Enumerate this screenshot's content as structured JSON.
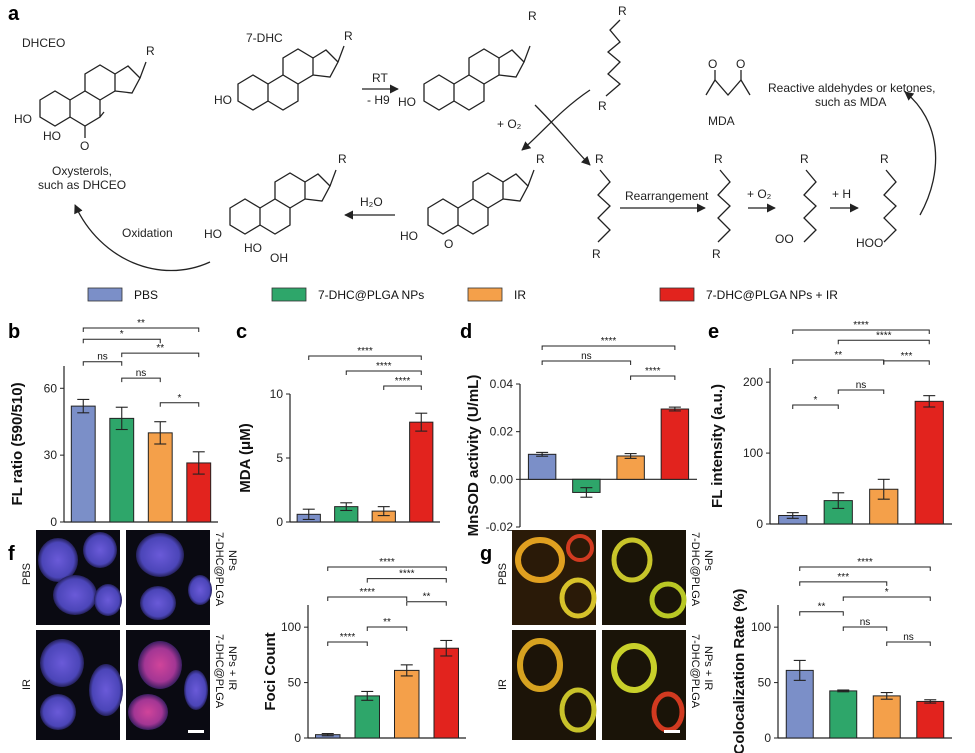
{
  "panels": {
    "a": "a",
    "b": "b",
    "c": "c",
    "d": "d",
    "e": "e",
    "f": "f",
    "g": "g"
  },
  "scheme": {
    "dhceo": "DHCEO",
    "dhc7": "7-DHC",
    "rt": "RT",
    "h9": "- H9",
    "o2_add": "+ O₂",
    "h2o": "H₂O",
    "oxidation": "Oxidation",
    "oxysterols": "Oxysterols,",
    "oxysterols2": "such as DHCEO",
    "rearrangement": "Rearrangement",
    "o2_add2": "+ O₂",
    "h_add": "+ H",
    "mda": "MDA",
    "reactive": "Reactive aldehydes or ketones,",
    "reactive2": "such as MDA",
    "r": "R",
    "h": "H",
    "ho": "HO",
    "oh": "OH",
    "o": "O",
    "ooh": "HOO",
    "oo": "OO"
  },
  "legend": [
    {
      "label": "PBS",
      "color": "#7b8fc8"
    },
    {
      "label": "7-DHC@PLGA NPs",
      "color": "#2ea66a"
    },
    {
      "label": "IR",
      "color": "#f4a04a"
    },
    {
      "label": "7-DHC@PLGA NPs + IR",
      "color": "#e2231e"
    }
  ],
  "chart_data": [
    {
      "panel": "b",
      "type": "bar",
      "ylabel": "FL ratio (590/510)",
      "categories": [
        "PBS",
        "7-DHC@PLGA NPs",
        "IR",
        "7-DHC@PLGA NPs + IR"
      ],
      "values": [
        52,
        46.5,
        40,
        26.5
      ],
      "errors": [
        3,
        5,
        5,
        5
      ],
      "ylim": [
        0,
        70
      ],
      "yticks": [
        "0",
        "30",
        "60"
      ],
      "significance": [
        {
          "from": 0,
          "to": 1,
          "label": "ns"
        },
        {
          "from": 0,
          "to": 2,
          "label": "*"
        },
        {
          "from": 0,
          "to": 3,
          "label": "**"
        },
        {
          "from": 1,
          "to": 2,
          "label": "ns"
        },
        {
          "from": 1,
          "to": 3,
          "label": "**"
        },
        {
          "from": 2,
          "to": 3,
          "label": "*"
        }
      ]
    },
    {
      "panel": "c",
      "type": "bar",
      "ylabel": "MDA (μM)",
      "categories": [
        "PBS",
        "7-DHC@PLGA NPs",
        "IR",
        "7-DHC@PLGA NPs + IR"
      ],
      "values": [
        0.6,
        1.2,
        0.85,
        7.8
      ],
      "errors": [
        0.4,
        0.3,
        0.35,
        0.7
      ],
      "ylim": [
        0,
        10
      ],
      "yticks": [
        "0",
        "5",
        "10"
      ],
      "significance": [
        {
          "from": 0,
          "to": 3,
          "label": "****"
        },
        {
          "from": 1,
          "to": 3,
          "label": "****"
        },
        {
          "from": 2,
          "to": 3,
          "label": "****"
        }
      ]
    },
    {
      "panel": "d",
      "type": "bar",
      "ylabel": "MnSOD activity (U/mL)",
      "categories": [
        "PBS",
        "7-DHC@PLGA NPs",
        "IR",
        "7-DHC@PLGA NPs + IR"
      ],
      "values": [
        0.0105,
        -0.0055,
        0.0098,
        0.0295
      ],
      "errors": [
        0.0008,
        0.002,
        0.001,
        0.0008
      ],
      "ylim": [
        -0.02,
        0.04
      ],
      "yticks": [
        "-0.02",
        "0.00",
        "0.02",
        "0.04"
      ],
      "significance": [
        {
          "from": 0,
          "to": 3,
          "label": "****"
        },
        {
          "from": 2,
          "to": 3,
          "label": "****"
        },
        {
          "from": 0,
          "to": 2,
          "label": "ns"
        }
      ]
    },
    {
      "panel": "e",
      "type": "bar",
      "ylabel": "FL intensity (a.u.)",
      "categories": [
        "PBS",
        "7-DHC@PLGA NPs",
        "IR",
        "7-DHC@PLGA NPs + IR"
      ],
      "values": [
        12,
        33,
        49,
        173
      ],
      "errors": [
        4,
        11,
        14,
        8
      ],
      "ylim": [
        0,
        220
      ],
      "yticks": [
        "0",
        "100",
        "200"
      ],
      "significance": [
        {
          "from": 0,
          "to": 3,
          "label": "****"
        },
        {
          "from": 1,
          "to": 3,
          "label": "****"
        },
        {
          "from": 2,
          "to": 3,
          "label": "***"
        },
        {
          "from": 0,
          "to": 2,
          "label": "**"
        },
        {
          "from": 1,
          "to": 2,
          "label": "ns"
        },
        {
          "from": 0,
          "to": 1,
          "label": "*"
        }
      ]
    },
    {
      "panel": "f",
      "type": "bar",
      "ylabel": "Foci Count",
      "categories": [
        "PBS",
        "7-DHC@PLGA NPs",
        "IR",
        "7-DHC@PLGA NPs + IR"
      ],
      "values": [
        3,
        38,
        61,
        81
      ],
      "errors": [
        1,
        4,
        5,
        7
      ],
      "ylim": [
        0,
        120
      ],
      "yticks": [
        "0",
        "50",
        "100"
      ],
      "significance": [
        {
          "from": 0,
          "to": 3,
          "label": "****"
        },
        {
          "from": 1,
          "to": 3,
          "label": "****"
        },
        {
          "from": 2,
          "to": 3,
          "label": "**"
        },
        {
          "from": 0,
          "to": 2,
          "label": "****"
        },
        {
          "from": 1,
          "to": 2,
          "label": "**"
        },
        {
          "from": 0,
          "to": 1,
          "label": "****"
        }
      ]
    },
    {
      "panel": "g",
      "type": "bar",
      "ylabel": "Colocalization Rate (%)",
      "categories": [
        "PBS",
        "7-DHC@PLGA NPs",
        "IR",
        "7-DHC@PLGA NPs + IR"
      ],
      "values": [
        61,
        42.5,
        38,
        33
      ],
      "errors": [
        9,
        0.8,
        3,
        1.5
      ],
      "ylim": [
        0,
        120
      ],
      "yticks": [
        "0",
        "50",
        "100"
      ],
      "significance": [
        {
          "from": 0,
          "to": 3,
          "label": "****"
        },
        {
          "from": 0,
          "to": 2,
          "label": "***"
        },
        {
          "from": 0,
          "to": 1,
          "label": "**"
        },
        {
          "from": 1,
          "to": 3,
          "label": "*"
        },
        {
          "from": 1,
          "to": 2,
          "label": "ns"
        },
        {
          "from": 2,
          "to": 3,
          "label": "ns"
        }
      ]
    }
  ],
  "micrographs": {
    "f": {
      "row1": "PBS",
      "row2": "IR",
      "side1": "7-DHC@PLGA",
      "side1b": "NPs",
      "side2": "7-DHC@PLGA",
      "side2b": "NPs + IR"
    },
    "g": {
      "row1": "PBS",
      "row2": "IR",
      "side1": "7-DHC@PLGA",
      "side1b": "NPs",
      "side2": "7-DHC@PLGA",
      "side2b": "NPs + IR"
    }
  }
}
